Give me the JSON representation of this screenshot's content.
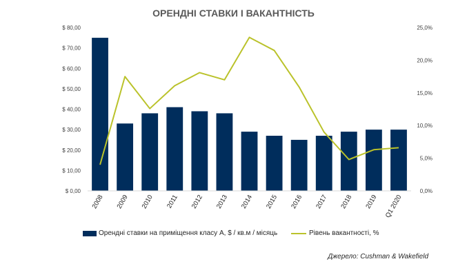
{
  "colors": {
    "bar": "#002D5C",
    "line": "#BAC22A",
    "axis": "#D9D9D9"
  },
  "chart_data": {
    "type": "bar",
    "title": "ОРЕНДНІ СТАВКИ І ВАКАНТНІСТЬ",
    "categories": [
      "2008",
      "2009",
      "2010",
      "2011",
      "2012",
      "2013",
      "2014",
      "2015",
      "2016",
      "2017",
      "2018",
      "2019",
      "Q1 2020"
    ],
    "series": [
      {
        "name": "Орендні ставки на приміщення класу А, $ / кв.м / місяць",
        "type": "bar",
        "axis": "left",
        "values": [
          75,
          33,
          38,
          41,
          39,
          38,
          29,
          27,
          25,
          27,
          29,
          30,
          30
        ]
      },
      {
        "name": "Рівень вакантності, %",
        "type": "line",
        "axis": "right",
        "values": [
          4.0,
          17.5,
          12.6,
          16.1,
          18.1,
          17.0,
          23.5,
          21.5,
          15.9,
          9.0,
          4.8,
          6.3,
          6.6
        ]
      }
    ],
    "y_left": {
      "min": 0,
      "max": 80,
      "step": 10,
      "tick_labels": [
        "$ 0,00",
        "$ 10,00",
        "$ 20,00",
        "$ 30,00",
        "$ 40,00",
        "$ 50,00",
        "$ 60,00",
        "$ 70,00",
        "$ 80,00"
      ]
    },
    "y_right": {
      "min": 0,
      "max": 25,
      "step": 5,
      "tick_labels": [
        "0,0%",
        "5,0%",
        "10,0%",
        "15,0%",
        "20,0%",
        "25,0%"
      ]
    },
    "grid": false,
    "legend_position": "bottom"
  },
  "source": "Джерело: Cushman & Wakefield"
}
